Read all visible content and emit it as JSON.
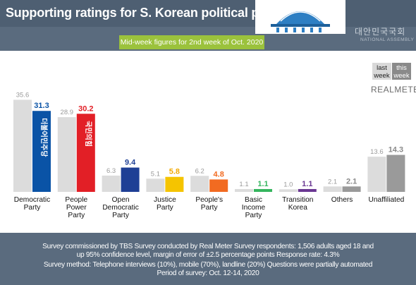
{
  "header": {
    "title": "Supporting ratings for S. Korean political parties",
    "subtitle": "Mid-week figures for 2nd week of Oct. 2020",
    "assembly_kr": "대안민국국회",
    "assembly_en": "NATIONAL ASSEMBLY"
  },
  "legend": {
    "last": [
      "last",
      "week"
    ],
    "this": [
      "this",
      "week"
    ],
    "brand": "REALMETER"
  },
  "chart_data": {
    "type": "bar",
    "categories": [
      [
        "Democratic",
        "Party"
      ],
      [
        "People",
        "Power",
        "Party"
      ],
      [
        "Open",
        "Democratic",
        "Party"
      ],
      [
        "Justice",
        "Party"
      ],
      [
        "People's",
        "Party"
      ],
      [
        "Basic",
        "Income",
        "Party"
      ],
      [
        "Transition",
        "Korea"
      ],
      [
        "Others"
      ],
      [
        "Unaffiliated"
      ]
    ],
    "series": [
      {
        "name": "last week",
        "values": [
          35.6,
          28.9,
          6.3,
          5.1,
          6.2,
          1.1,
          1.0,
          2.1,
          13.6
        ]
      },
      {
        "name": "this week",
        "values": [
          31.3,
          30.2,
          9.4,
          5.8,
          4.8,
          1.1,
          1.1,
          2.1,
          14.3
        ]
      }
    ],
    "last_week_color": "#dcdcdc",
    "this_week_colors": [
      "#0a53a6",
      "#e21f26",
      "#1e3f95",
      "#f5c400",
      "#f26b21",
      "#35b55e",
      "#6a3792",
      "#9a9a9a",
      "#9a9a9a"
    ],
    "this_week_label_colors": [
      "#0a53a6",
      "#e21f26",
      "#1e3f95",
      "#f2a900",
      "#f26b21",
      "#35b55e",
      "#6a3792",
      "#8a8a8a",
      "#8a8a8a"
    ],
    "bar_logos": [
      "더불어민주당",
      "국민의힘",
      "",
      "",
      "",
      "",
      "",
      "",
      ""
    ],
    "ylim": [
      0,
      36
    ]
  },
  "footer": {
    "line1": "Survey commissioned by TBS Survey conducted by Real Meter Survey respondents: 1,506 adults aged 18 and",
    "line2": "up 95% confidence level, margin of error of ±2.5 percentage points Response rate: 4.3%",
    "line3": "Survey method:  Telephone interviews (10%), mobile (70%), landline (20%) Questions were partially automated",
    "line4": "Period of survey: Oct. 12-14, 2020"
  }
}
